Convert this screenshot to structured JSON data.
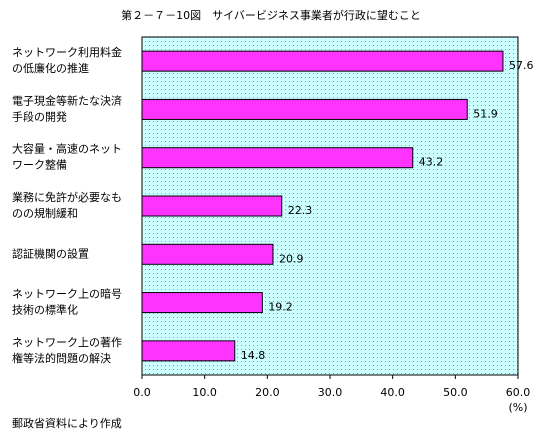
{
  "chart_data": {
    "type": "hbar",
    "title": "第２－７－10図　サイバービジネス事業者が行政に望むこと",
    "categories": [
      [
        "ネットワーク利用料金",
        "の低廉化の推進"
      ],
      [
        "電子現金等新たな決済",
        "手段の開発"
      ],
      [
        "大容量・高速のネット",
        "ワーク整備"
      ],
      [
        "業務に免許が必要なも",
        "のの規制緩和"
      ],
      [
        "認証機関の設置"
      ],
      [
        "ネットワーク上の暗号",
        "技術の標準化"
      ],
      [
        "ネットワーク上の著作",
        "権等法的問題の解決"
      ]
    ],
    "values": [
      57.6,
      51.9,
      43.2,
      22.3,
      20.9,
      19.2,
      14.8
    ],
    "color": "#ff33ff",
    "xlim": [
      0,
      60
    ],
    "xticks": [
      {
        "value": 0,
        "label": "0.0"
      },
      {
        "value": 10,
        "label": "10.0"
      },
      {
        "value": 20,
        "label": "20.0"
      },
      {
        "value": 30,
        "label": "30.0"
      },
      {
        "value": 40,
        "label": "40.0"
      },
      {
        "value": 50,
        "label": "50.0"
      },
      {
        "value": 60,
        "label": "60.0"
      }
    ],
    "x_unit": "(%)",
    "source": "郵政省資料により作成"
  }
}
